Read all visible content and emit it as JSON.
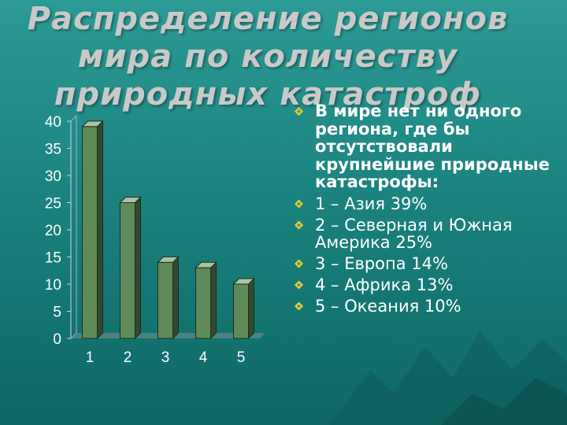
{
  "slide": {
    "title": "Распределение регионов мира по количеству природных катастроф"
  },
  "bullets": {
    "heading": "В мире нет ни одного региона, где бы отсутствовали крупнейшие природные катастрофы:",
    "items": [
      "1 – Азия 39%",
      "2 – Северная и Южная Америка 25%",
      "3 – Европа 14%",
      "4 – Африка 13%",
      "5 – Океания 10%"
    ],
    "bullet_icon": "diamond-bullet-icon",
    "bullet_color": "#d9d34a"
  },
  "chart_data": {
    "type": "bar",
    "categories": [
      "1",
      "2",
      "3",
      "4",
      "5"
    ],
    "values": [
      39,
      25,
      14,
      13,
      10
    ],
    "title": "",
    "xlabel": "",
    "ylabel": "",
    "ylim": [
      0,
      40
    ],
    "yticks": [
      "0",
      "5",
      "10",
      "15",
      "20",
      "25",
      "30",
      "35",
      "40"
    ],
    "grid": false,
    "legend": "none",
    "bar_color": "#5f8a5a"
  }
}
